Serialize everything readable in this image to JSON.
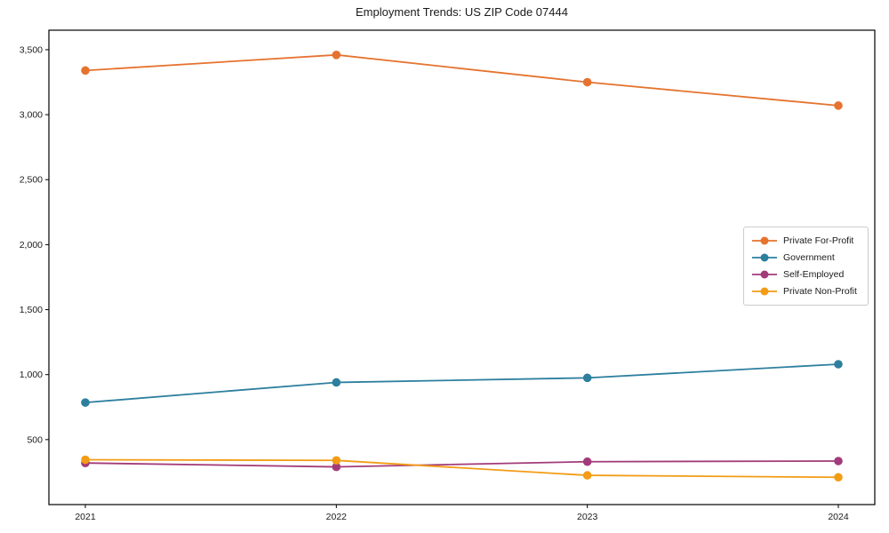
{
  "chart_data": {
    "type": "line",
    "title": "Employment Trends: US ZIP Code 07444",
    "categories": [
      "2021",
      "2022",
      "2023",
      "2024"
    ],
    "series": [
      {
        "name": "Private For-Profit",
        "color": "#e5732f",
        "values": [
          3340,
          3460,
          3250,
          3070
        ]
      },
      {
        "name": "Government",
        "color": "#2d7f9e",
        "values": [
          785,
          940,
          975,
          1080
        ]
      },
      {
        "name": "Self-Employed",
        "color": "#a23b79",
        "values": [
          320,
          290,
          330,
          335
        ]
      },
      {
        "name": "Private Non-Profit",
        "color": "#f29c16",
        "values": [
          345,
          340,
          225,
          210
        ]
      }
    ],
    "yticks": [
      500,
      1000,
      1500,
      2000,
      2500,
      3000,
      3500
    ],
    "ytick_labels": [
      "500",
      "1,000",
      "1,500",
      "2,000",
      "2,500",
      "3,000",
      "3,500"
    ],
    "ylim": [
      0,
      3650
    ],
    "xlabel": "",
    "ylabel": "",
    "grid": false,
    "legend_position": "center right",
    "spine_color": "#000000",
    "tick_label_color": "#1a1a1a"
  }
}
